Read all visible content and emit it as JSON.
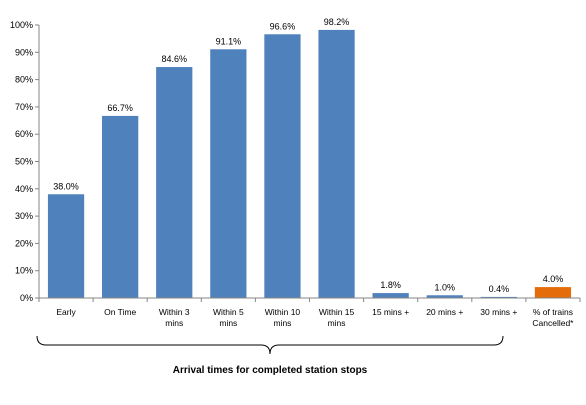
{
  "chart_data": {
    "type": "bar",
    "categories": [
      [
        "Early"
      ],
      [
        "On Time"
      ],
      [
        "Within 3",
        "mins"
      ],
      [
        "Within 5",
        "mins"
      ],
      [
        "Within 10",
        "mins"
      ],
      [
        "Within 15",
        "mins"
      ],
      [
        "15 mins +"
      ],
      [
        "20 mins +"
      ],
      [
        "30 mins +"
      ],
      [
        "% of trains",
        "Cancelled*"
      ]
    ],
    "values": [
      38.0,
      66.7,
      84.6,
      91.1,
      96.6,
      98.2,
      1.8,
      1.0,
      0.4,
      4.0
    ],
    "data_labels": [
      "38.0%",
      "66.7%",
      "84.6%",
      "91.1%",
      "96.6%",
      "98.2%",
      "1.8%",
      "1.0%",
      "0.4%",
      "4.0%"
    ],
    "bar_colors": [
      "#4f81bd",
      "#4f81bd",
      "#4f81bd",
      "#4f81bd",
      "#4f81bd",
      "#4f81bd",
      "#4f81bd",
      "#4f81bd",
      "#4f81bd",
      "#e46c0a"
    ],
    "yticks": [
      "0%",
      "10%",
      "20%",
      "30%",
      "40%",
      "50%",
      "60%",
      "70%",
      "80%",
      "90%",
      "100%"
    ],
    "ylim": [
      0,
      100
    ],
    "xlabel": "Arrival times for completed station stops",
    "brace_span": "first 9 categories",
    "grid": false,
    "legend": "none"
  }
}
